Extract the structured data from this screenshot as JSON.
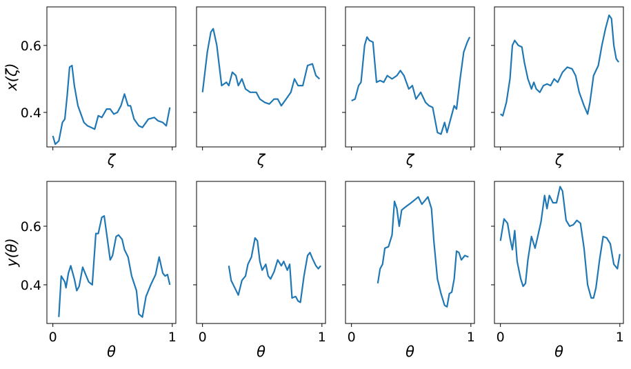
{
  "chart_data": [
    {
      "type": "line",
      "xlabel": "ζ",
      "ylabel": "x(ζ)",
      "color": "#1f77b4",
      "xlim": [
        -0.05,
        1.03
      ],
      "ylim": [
        0.297,
        0.715
      ],
      "xticks": [
        0,
        1
      ],
      "yticks": [
        0.4,
        0.6
      ],
      "show_xtick_labels": false,
      "show_ytick_labels": true,
      "x": [
        0,
        0.02,
        0.05,
        0.08,
        0.1,
        0.12,
        0.14,
        0.16,
        0.18,
        0.21,
        0.23,
        0.26,
        0.29,
        0.32,
        0.35,
        0.38,
        0.41,
        0.45,
        0.48,
        0.51,
        0.54,
        0.57,
        0.6,
        0.63,
        0.65,
        0.68,
        0.72,
        0.75,
        0.8,
        0.85,
        0.88,
        0.92,
        0.95,
        0.98
      ],
      "values": [
        0.33,
        0.305,
        0.315,
        0.37,
        0.38,
        0.45,
        0.535,
        0.54,
        0.48,
        0.42,
        0.4,
        0.37,
        0.36,
        0.355,
        0.35,
        0.39,
        0.385,
        0.41,
        0.41,
        0.395,
        0.4,
        0.42,
        0.455,
        0.42,
        0.42,
        0.38,
        0.36,
        0.355,
        0.38,
        0.385,
        0.375,
        0.37,
        0.36,
        0.415
      ]
    },
    {
      "type": "line",
      "xlabel": "ζ",
      "color": "#1f77b4",
      "xlim": [
        -0.05,
        1.03
      ],
      "ylim": [
        0.297,
        0.715
      ],
      "xticks": [
        0,
        1
      ],
      "yticks": [
        0.4,
        0.6
      ],
      "show_xtick_labels": false,
      "show_ytick_labels": false,
      "x": [
        0,
        0.04,
        0.07,
        0.09,
        0.12,
        0.14,
        0.16,
        0.2,
        0.22,
        0.25,
        0.28,
        0.3,
        0.33,
        0.36,
        0.4,
        0.45,
        0.48,
        0.52,
        0.56,
        0.6,
        0.63,
        0.66,
        0.7,
        0.74,
        0.77,
        0.8,
        0.84,
        0.88,
        0.92,
        0.95,
        0.98
      ],
      "values": [
        0.46,
        0.58,
        0.64,
        0.65,
        0.6,
        0.54,
        0.48,
        0.49,
        0.48,
        0.52,
        0.51,
        0.48,
        0.5,
        0.47,
        0.46,
        0.46,
        0.44,
        0.43,
        0.425,
        0.44,
        0.44,
        0.42,
        0.44,
        0.46,
        0.5,
        0.48,
        0.48,
        0.54,
        0.545,
        0.51,
        0.5
      ]
    },
    {
      "type": "line",
      "xlabel": "ζ",
      "color": "#1f77b4",
      "xlim": [
        -0.05,
        1.03
      ],
      "ylim": [
        0.297,
        0.715
      ],
      "xticks": [
        0,
        1
      ],
      "yticks": [
        0.4,
        0.6
      ],
      "show_xtick_labels": false,
      "show_ytick_labels": false,
      "x": [
        0,
        0.03,
        0.06,
        0.08,
        0.11,
        0.13,
        0.15,
        0.18,
        0.21,
        0.24,
        0.27,
        0.3,
        0.34,
        0.38,
        0.41,
        0.44,
        0.48,
        0.51,
        0.54,
        0.58,
        0.62,
        0.65,
        0.68,
        0.72,
        0.75,
        0.78,
        0.8,
        0.83,
        0.86,
        0.88,
        0.91,
        0.94,
        0.97,
        0.99
      ],
      "values": [
        0.435,
        0.44,
        0.48,
        0.49,
        0.6,
        0.625,
        0.615,
        0.61,
        0.49,
        0.495,
        0.49,
        0.51,
        0.5,
        0.51,
        0.525,
        0.51,
        0.47,
        0.48,
        0.44,
        0.46,
        0.43,
        0.42,
        0.415,
        0.34,
        0.335,
        0.37,
        0.34,
        0.38,
        0.42,
        0.41,
        0.5,
        0.58,
        0.61,
        0.625
      ]
    },
    {
      "type": "line",
      "xlabel": "ζ",
      "color": "#1f77b4",
      "xlim": [
        -0.05,
        1.03
      ],
      "ylim": [
        0.297,
        0.715
      ],
      "xticks": [
        0,
        1
      ],
      "yticks": [
        0.4,
        0.6
      ],
      "show_xtick_labels": false,
      "show_ytick_labels": false,
      "x": [
        0,
        0.02,
        0.05,
        0.08,
        0.1,
        0.12,
        0.15,
        0.18,
        0.2,
        0.23,
        0.26,
        0.28,
        0.3,
        0.33,
        0.36,
        0.39,
        0.42,
        0.45,
        0.48,
        0.52,
        0.56,
        0.6,
        0.63,
        0.66,
        0.7,
        0.73,
        0.75,
        0.78,
        0.82,
        0.85,
        0.88,
        0.91,
        0.93,
        0.95,
        0.97,
        0.99
      ],
      "values": [
        0.395,
        0.39,
        0.43,
        0.5,
        0.6,
        0.615,
        0.6,
        0.595,
        0.55,
        0.5,
        0.47,
        0.49,
        0.47,
        0.46,
        0.48,
        0.485,
        0.48,
        0.5,
        0.49,
        0.52,
        0.535,
        0.53,
        0.51,
        0.46,
        0.42,
        0.395,
        0.43,
        0.51,
        0.54,
        0.6,
        0.65,
        0.69,
        0.68,
        0.6,
        0.56,
        0.55
      ]
    },
    {
      "type": "line",
      "xlabel": "θ",
      "ylabel": "y(θ)",
      "color": "#1f77b4",
      "xlim": [
        -0.05,
        1.03
      ],
      "ylim": [
        0.268,
        0.753
      ],
      "xticks": [
        0,
        1
      ],
      "yticks": [
        0.4,
        0.6
      ],
      "show_xtick_labels": true,
      "show_ytick_labels": true,
      "x": [
        0.05,
        0.07,
        0.1,
        0.11,
        0.13,
        0.15,
        0.18,
        0.2,
        0.22,
        0.25,
        0.28,
        0.3,
        0.33,
        0.36,
        0.38,
        0.41,
        0.43,
        0.45,
        0.48,
        0.5,
        0.53,
        0.55,
        0.58,
        0.6,
        0.63,
        0.66,
        0.7,
        0.72,
        0.75,
        0.78,
        0.82,
        0.86,
        0.89,
        0.92,
        0.94,
        0.96,
        0.98
      ],
      "values": [
        0.29,
        0.43,
        0.41,
        0.39,
        0.44,
        0.465,
        0.42,
        0.38,
        0.395,
        0.46,
        0.43,
        0.41,
        0.4,
        0.575,
        0.575,
        0.63,
        0.635,
        0.575,
        0.485,
        0.5,
        0.565,
        0.57,
        0.555,
        0.52,
        0.495,
        0.43,
        0.38,
        0.3,
        0.29,
        0.36,
        0.4,
        0.435,
        0.495,
        0.44,
        0.43,
        0.435,
        0.4
      ]
    },
    {
      "type": "line",
      "xlabel": "θ",
      "color": "#1f77b4",
      "xlim": [
        -0.05,
        1.03
      ],
      "ylim": [
        0.268,
        0.753
      ],
      "xticks": [
        0,
        1
      ],
      "yticks": [
        0.4,
        0.6
      ],
      "show_xtick_labels": true,
      "show_ytick_labels": false,
      "x": [
        0.22,
        0.24,
        0.27,
        0.3,
        0.33,
        0.36,
        0.38,
        0.41,
        0.44,
        0.46,
        0.48,
        0.5,
        0.53,
        0.55,
        0.57,
        0.6,
        0.63,
        0.66,
        0.68,
        0.71,
        0.73,
        0.75,
        0.78,
        0.8,
        0.82,
        0.85,
        0.88,
        0.9,
        0.92,
        0.95,
        0.97,
        0.99
      ],
      "values": [
        0.465,
        0.415,
        0.39,
        0.365,
        0.415,
        0.43,
        0.47,
        0.495,
        0.56,
        0.55,
        0.48,
        0.45,
        0.47,
        0.43,
        0.42,
        0.445,
        0.485,
        0.465,
        0.48,
        0.45,
        0.47,
        0.355,
        0.36,
        0.345,
        0.34,
        0.43,
        0.5,
        0.51,
        0.49,
        0.465,
        0.455,
        0.465
      ]
    },
    {
      "type": "line",
      "xlabel": "θ",
      "color": "#1f77b4",
      "xlim": [
        -0.05,
        1.03
      ],
      "ylim": [
        0.268,
        0.753
      ],
      "xticks": [
        0,
        1
      ],
      "yticks": [
        0.4,
        0.6
      ],
      "show_xtick_labels": true,
      "show_ytick_labels": false,
      "x": [
        0.22,
        0.24,
        0.26,
        0.28,
        0.31,
        0.34,
        0.36,
        0.38,
        0.4,
        0.42,
        0.45,
        0.5,
        0.53,
        0.56,
        0.59,
        0.62,
        0.64,
        0.67,
        0.69,
        0.72,
        0.75,
        0.78,
        0.8,
        0.82,
        0.84,
        0.86,
        0.88,
        0.9,
        0.92,
        0.95,
        0.98
      ],
      "values": [
        0.405,
        0.455,
        0.47,
        0.525,
        0.53,
        0.57,
        0.685,
        0.66,
        0.6,
        0.655,
        0.665,
        0.68,
        0.69,
        0.7,
        0.675,
        0.69,
        0.7,
        0.66,
        0.55,
        0.42,
        0.37,
        0.33,
        0.325,
        0.37,
        0.375,
        0.42,
        0.515,
        0.51,
        0.485,
        0.5,
        0.495
      ]
    },
    {
      "type": "line",
      "xlabel": "θ",
      "color": "#1f77b4",
      "xlim": [
        -0.05,
        1.03
      ],
      "ylim": [
        0.268,
        0.753
      ],
      "xticks": [
        0,
        1
      ],
      "yticks": [
        0.4,
        0.6
      ],
      "show_xtick_labels": true,
      "show_ytick_labels": false,
      "x": [
        0,
        0.03,
        0.06,
        0.08,
        0.1,
        0.12,
        0.14,
        0.17,
        0.19,
        0.21,
        0.23,
        0.26,
        0.29,
        0.31,
        0.34,
        0.37,
        0.39,
        0.41,
        0.44,
        0.47,
        0.5,
        0.52,
        0.55,
        0.58,
        0.61,
        0.64,
        0.67,
        0.7,
        0.73,
        0.76,
        0.78,
        0.8,
        0.83,
        0.86,
        0.89,
        0.92,
        0.95,
        0.98,
        1.0
      ],
      "values": [
        0.55,
        0.625,
        0.61,
        0.56,
        0.52,
        0.585,
        0.48,
        0.42,
        0.395,
        0.405,
        0.485,
        0.565,
        0.525,
        0.56,
        0.615,
        0.705,
        0.66,
        0.705,
        0.68,
        0.68,
        0.735,
        0.72,
        0.62,
        0.6,
        0.605,
        0.62,
        0.61,
        0.525,
        0.4,
        0.355,
        0.355,
        0.39,
        0.485,
        0.565,
        0.56,
        0.54,
        0.47,
        0.455,
        0.505
      ]
    }
  ]
}
